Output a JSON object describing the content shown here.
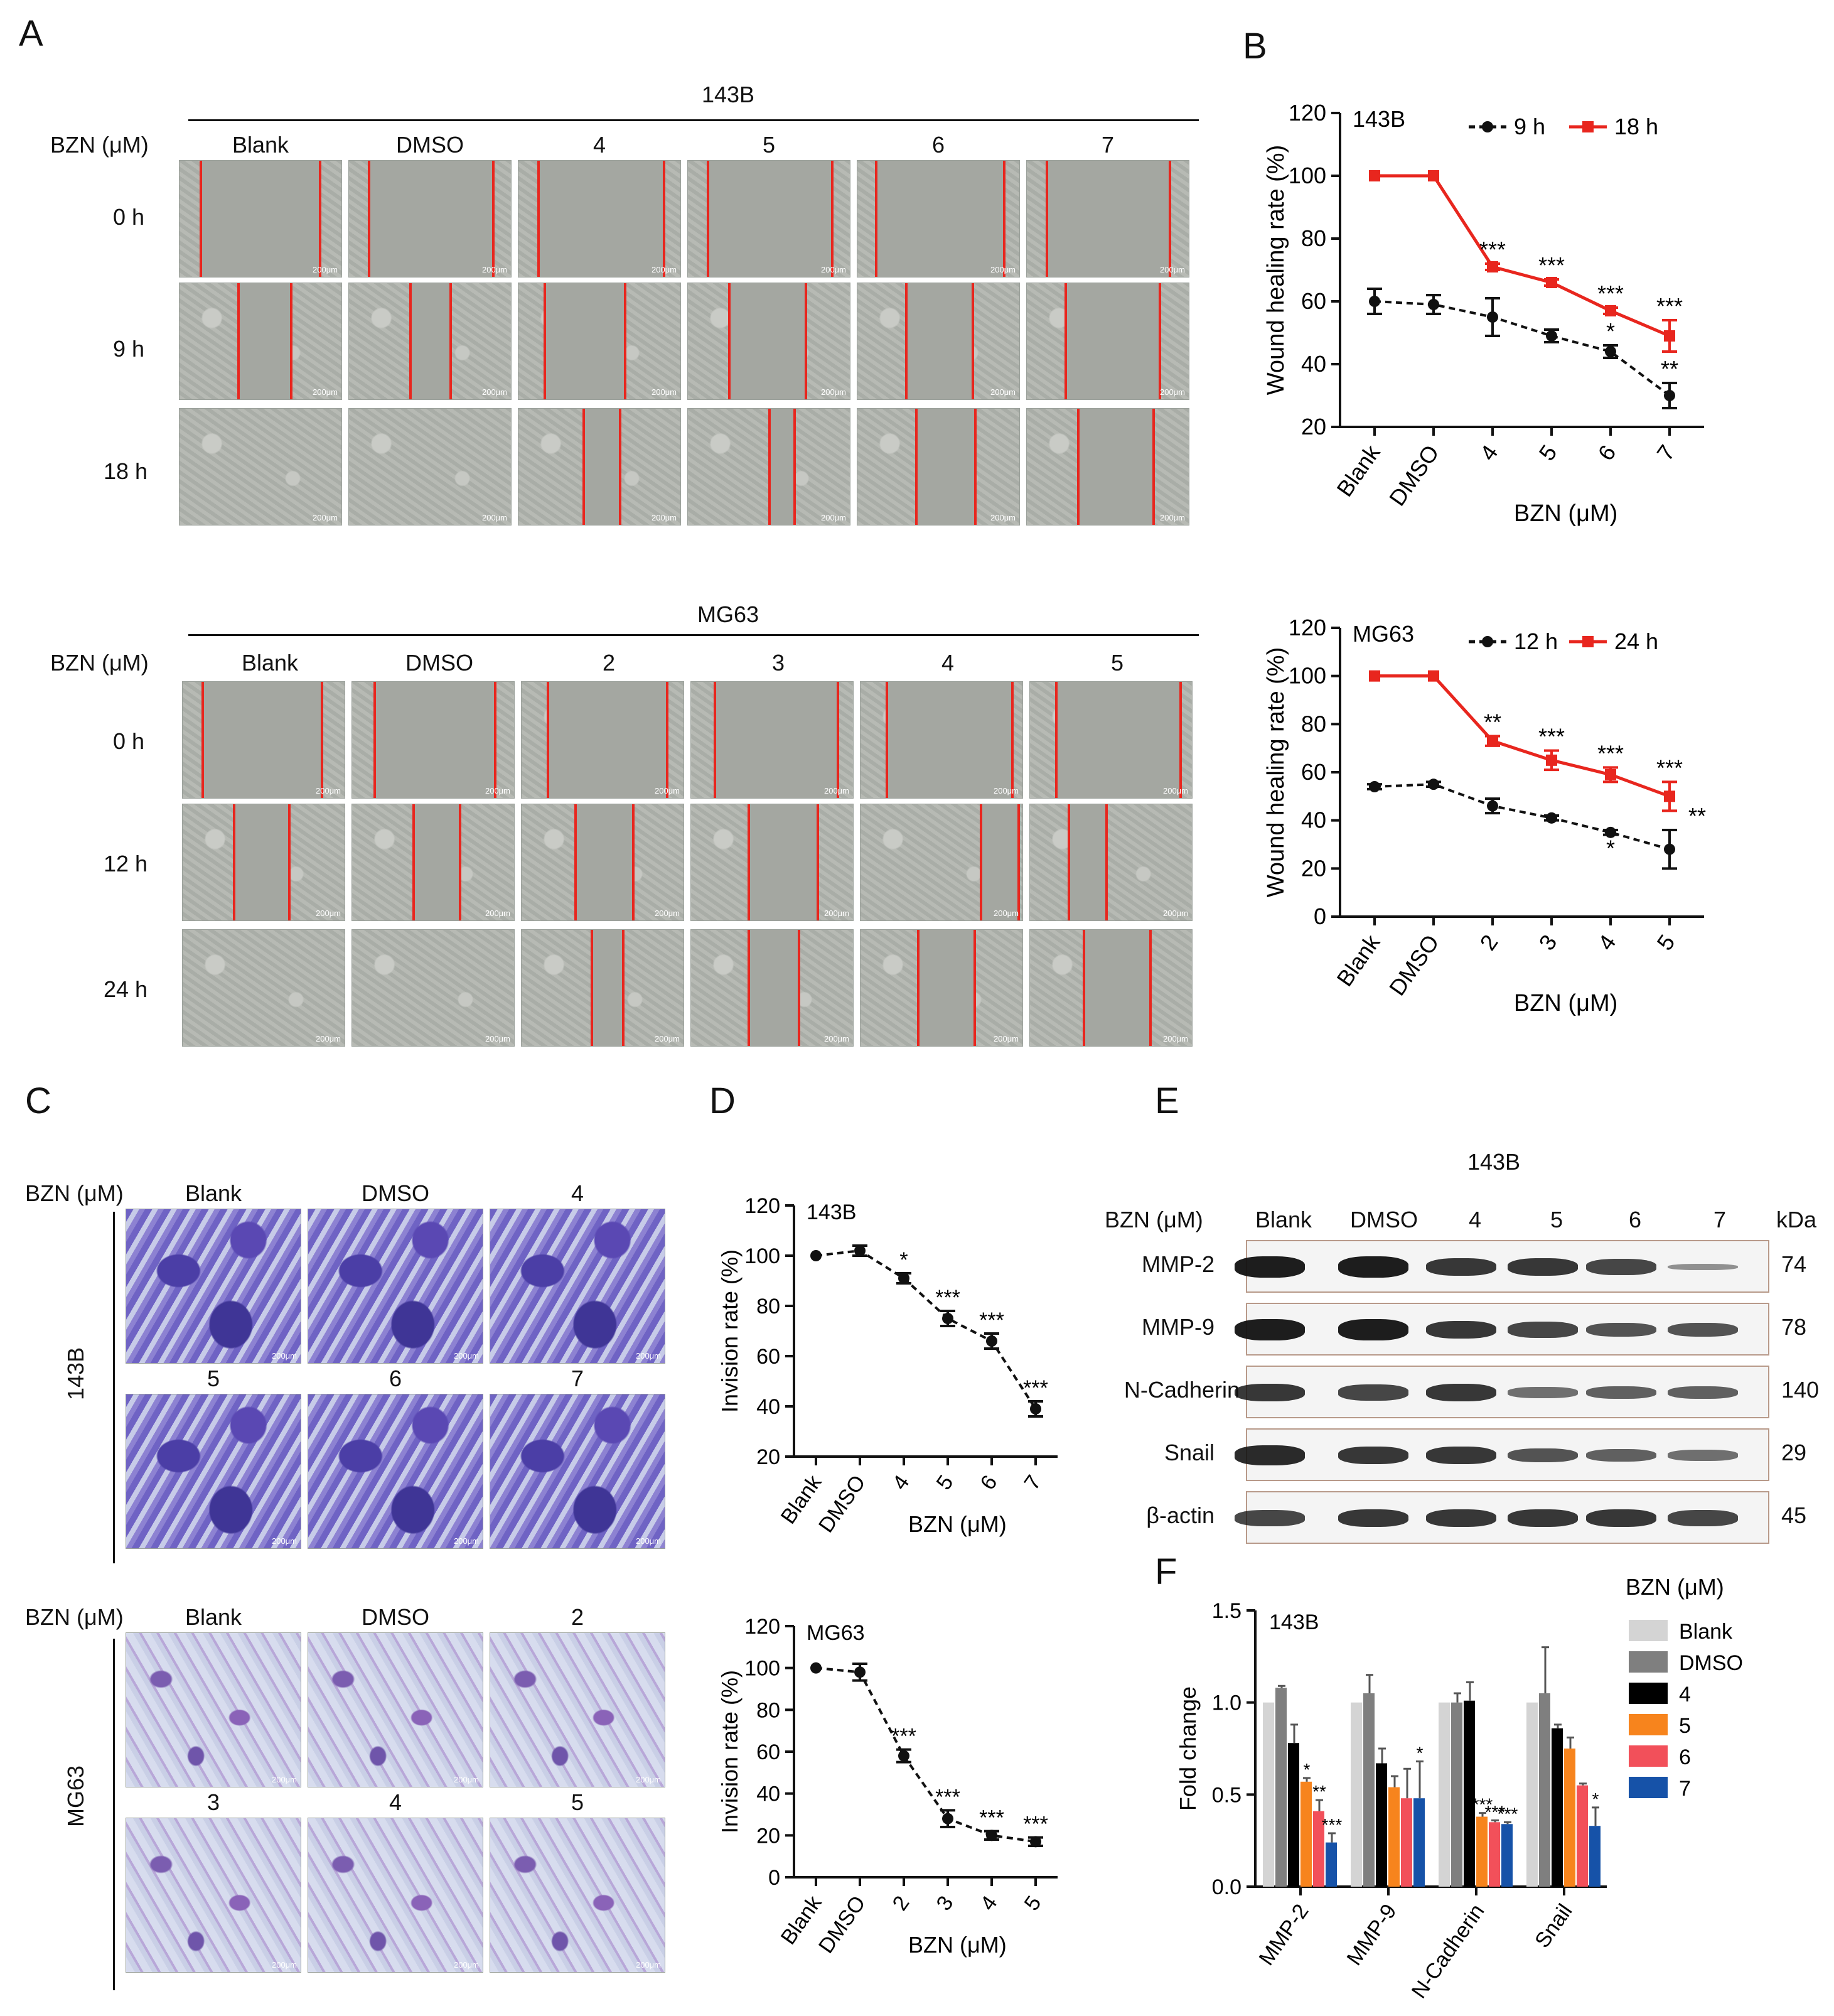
{
  "panels": {
    "A": "A",
    "B": "B",
    "C": "C",
    "D": "D",
    "E": "E",
    "F": "F"
  },
  "panelA": {
    "top": {
      "cell_line": "143B",
      "row_label": "BZN (μM)",
      "columns": [
        "Blank",
        "DMSO",
        "4",
        "5",
        "6",
        "7"
      ],
      "times": [
        "0 h",
        "9 h",
        "18 h"
      ]
    },
    "bottom": {
      "cell_line": "MG63",
      "row_label": "BZN (μM)",
      "columns": [
        "Blank",
        "DMSO",
        "2",
        "3",
        "4",
        "5"
      ],
      "times": [
        "0 h",
        "12 h",
        "24 h"
      ]
    },
    "scale": "200μm"
  },
  "panelC": {
    "top": {
      "cell_line": "143B",
      "row_label": "BZN (μM)",
      "row1": [
        "Blank",
        "DMSO",
        "4"
      ],
      "row2": [
        "5",
        "6",
        "7"
      ]
    },
    "bottom": {
      "cell_line": "MG63",
      "row_label": "BZN (μM)",
      "row1": [
        "Blank",
        "DMSO",
        "2"
      ],
      "row2": [
        "3",
        "4",
        "5"
      ]
    },
    "scale": "200μm"
  },
  "panelE": {
    "cell_line": "143B",
    "row_label": "BZN (μM)",
    "columns": [
      "Blank",
      "DMSO",
      "4",
      "5",
      "6",
      "7"
    ],
    "kda_label": "kDa",
    "proteins": [
      "MMP-2",
      "MMP-9",
      "N-Cadherin",
      "Snail",
      "β-actin"
    ],
    "kda": [
      "74",
      "78",
      "140",
      "29",
      "45"
    ]
  },
  "chart_data": [
    {
      "id": "B-143B",
      "type": "line",
      "inset": "143B",
      "categories": [
        "Blank",
        "DMSO",
        "4",
        "5",
        "6",
        "7"
      ],
      "ylabel": "Wound healing rate (%)",
      "xlabel": "BZN (μM)",
      "ylim": [
        20,
        120
      ],
      "yticks": [
        20,
        40,
        60,
        80,
        100,
        120
      ],
      "series": [
        {
          "name": "9 h",
          "color": "#111111",
          "dashed": true,
          "values": [
            60,
            59,
            55,
            49,
            44,
            30
          ],
          "err": [
            4,
            3,
            6,
            2,
            2,
            4
          ],
          "sig": [
            "",
            "",
            "",
            "",
            "*",
            "**"
          ]
        },
        {
          "name": "18 h",
          "color": "#e8261e",
          "dashed": false,
          "values": [
            100,
            100,
            71,
            66,
            57,
            49
          ],
          "err": [
            0,
            0,
            1,
            1,
            1,
            5
          ],
          "sig": [
            "",
            "",
            "***",
            "***",
            "***",
            "***"
          ]
        }
      ]
    },
    {
      "id": "B-MG63",
      "type": "line",
      "inset": "MG63",
      "categories": [
        "Blank",
        "DMSO",
        "2",
        "3",
        "4",
        "5"
      ],
      "ylabel": "Wound healing rate (%)",
      "xlabel": "BZN (μM)",
      "ylim": [
        0,
        120
      ],
      "yticks": [
        0,
        20,
        40,
        60,
        80,
        100,
        120
      ],
      "series": [
        {
          "name": "12 h",
          "color": "#111111",
          "dashed": true,
          "values": [
            54,
            55,
            46,
            41,
            35,
            28
          ],
          "err": [
            1,
            1,
            3,
            1,
            1,
            8
          ],
          "sig": [
            "",
            "",
            "",
            "",
            "*",
            "**"
          ]
        },
        {
          "name": "24 h",
          "color": "#e8261e",
          "dashed": false,
          "values": [
            100,
            100,
            73,
            65,
            59,
            50
          ],
          "err": [
            0,
            0,
            2,
            4,
            3,
            6
          ],
          "sig": [
            "",
            "",
            "**",
            "***",
            "***",
            "***"
          ]
        }
      ]
    },
    {
      "id": "D-143B",
      "type": "line",
      "inset": "143B",
      "categories": [
        "Blank",
        "DMSO",
        "4",
        "5",
        "6",
        "7"
      ],
      "ylabel": "Invision rate (%)",
      "xlabel": "BZN (μM)",
      "ylim": [
        20,
        120
      ],
      "yticks": [
        20,
        40,
        60,
        80,
        100,
        120
      ],
      "series": [
        {
          "name": "Invision",
          "color": "#111111",
          "dashed": true,
          "values": [
            100,
            102,
            91,
            75,
            66,
            39
          ],
          "err": [
            0,
            2,
            2,
            3,
            3,
            3
          ],
          "sig": [
            "",
            "",
            "*",
            "***",
            "***",
            "***"
          ]
        }
      ]
    },
    {
      "id": "D-MG63",
      "type": "line",
      "inset": "MG63",
      "categories": [
        "Blank",
        "DMSO",
        "2",
        "3",
        "4",
        "5"
      ],
      "ylabel": "Invision rate (%)",
      "xlabel": "BZN (μM)",
      "ylim": [
        0,
        120
      ],
      "yticks": [
        0,
        20,
        40,
        60,
        80,
        100,
        120
      ],
      "series": [
        {
          "name": "Invision",
          "color": "#111111",
          "dashed": true,
          "values": [
            100,
            98,
            58,
            28,
            20,
            17
          ],
          "err": [
            0,
            4,
            3,
            4,
            2,
            2
          ],
          "sig": [
            "",
            "",
            "***",
            "***",
            "***",
            "***"
          ]
        }
      ]
    },
    {
      "id": "F",
      "type": "bar",
      "inset": "143B",
      "categories": [
        "MMP-2",
        "MMP-9",
        "N-Cadherin",
        "Snail"
      ],
      "ylabel": "Fold change",
      "ylim": [
        0,
        1.5
      ],
      "yticks": [
        "0.0",
        "0.5",
        "1.0",
        "1.5"
      ],
      "legend_title": "BZN (μM)",
      "series": [
        {
          "name": "Blank",
          "color": "#d4d4d4",
          "values": [
            1.0,
            1.0,
            1.0,
            1.0
          ],
          "err": [
            0,
            0,
            0,
            0
          ],
          "sig": [
            "",
            "",
            "",
            ""
          ]
        },
        {
          "name": "DMSO",
          "color": "#7f7f7f",
          "values": [
            1.08,
            1.05,
            1.0,
            1.05
          ],
          "err": [
            0.01,
            0.1,
            0.05,
            0.25
          ],
          "sig": [
            "",
            "",
            "",
            ""
          ]
        },
        {
          "name": "4",
          "color": "#000000",
          "values": [
            0.78,
            0.67,
            1.01,
            0.86
          ],
          "err": [
            0.1,
            0.08,
            0.1,
            0.02
          ],
          "sig": [
            "",
            "",
            "",
            ""
          ]
        },
        {
          "name": "5",
          "color": "#f7841d",
          "values": [
            0.57,
            0.54,
            0.38,
            0.75
          ],
          "err": [
            0.02,
            0.06,
            0.02,
            0.06
          ],
          "sig": [
            "*",
            "",
            "***",
            ""
          ]
        },
        {
          "name": "6",
          "color": "#f2505a",
          "values": [
            0.41,
            0.48,
            0.35,
            0.55
          ],
          "err": [
            0.06,
            0.16,
            0.01,
            0.01
          ],
          "sig": [
            "**",
            "",
            "***",
            ""
          ]
        },
        {
          "name": "7",
          "color": "#1652a8",
          "values": [
            0.24,
            0.48,
            0.34,
            0.33
          ],
          "err": [
            0.05,
            0.2,
            0.01,
            0.1
          ],
          "sig": [
            "***",
            "*",
            "***",
            "*"
          ]
        }
      ]
    }
  ]
}
